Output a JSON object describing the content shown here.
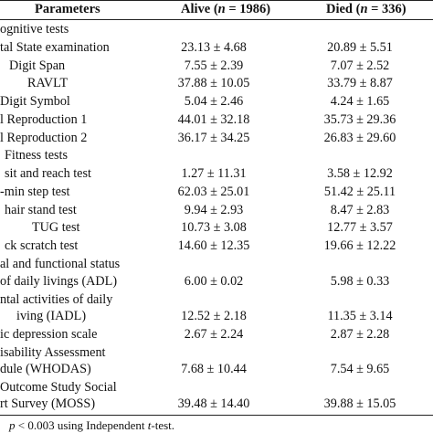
{
  "header": {
    "parameters": "Parameters",
    "alive_prefix": "Alive (",
    "alive_n": "n",
    "alive_suffix": " = 1986)",
    "died_prefix": "Died (",
    "died_n": "n",
    "died_suffix": " = 336)"
  },
  "rows": [
    {
      "label": "ognitive tests",
      "alive": "",
      "died": ""
    },
    {
      "label": "tal State examination",
      "alive": "23.13 ± 4.68",
      "died": "20.89 ± 5.51"
    },
    {
      "label": "Digit Span",
      "alive": "7.55 ± 2.39",
      "died": "7.07 ± 2.52"
    },
    {
      "label": "RAVLT",
      "alive": "37.88 ± 10.05",
      "died": "33.79 ± 8.87"
    },
    {
      "label": "Digit Symbol",
      "alive": "5.04 ± 2.46",
      "died": "4.24 ± 1.65"
    },
    {
      "label": "l Reproduction 1",
      "alive": "44.01 ± 32.18",
      "died": "35.73 ± 29.36"
    },
    {
      "label": "l Reproduction 2",
      "alive": "36.17 ± 34.25",
      "died": "26.83 ± 29.60"
    },
    {
      "label": "Fitness tests",
      "alive": "",
      "died": ""
    },
    {
      "label": "sit and reach test",
      "alive": "1.27 ± 11.31",
      "died": "3.58 ± 12.92"
    },
    {
      "label": "-min step test",
      "alive": "62.03 ± 25.01",
      "died": "51.42 ± 25.11"
    },
    {
      "label": "hair stand test",
      "alive": "9.94 ± 2.93",
      "died": "8.47 ± 2.83"
    },
    {
      "label": "TUG test",
      "alive": "10.73 ± 3.08",
      "died": "12.77 ± 3.57"
    },
    {
      "label": "ck scratch test",
      "alive": "14.60 ± 12.35",
      "died": "19.66 ± 12.22"
    },
    {
      "label": "al and functional status",
      "alive": "",
      "died": ""
    },
    {
      "label": "of daily livings (ADL)",
      "alive": "6.00 ± 0.02",
      "died": "5.98 ± 0.33"
    },
    {
      "label": "ntal activities of daily",
      "alive": "",
      "died": ""
    },
    {
      "label": "iving (IADL)",
      "alive": "12.52 ± 2.18",
      "died": "11.35 ± 3.14"
    },
    {
      "label": "ic depression scale",
      "alive": "2.67 ± 2.24",
      "died": "2.87 ± 2.28"
    },
    {
      "label": "isability Assessment",
      "alive": "",
      "died": ""
    },
    {
      "label": "dule (WHODAS)",
      "alive": "7.68 ± 10.44",
      "died": "7.54 ± 9.65"
    },
    {
      "label": "Outcome Study Social",
      "alive": "",
      "died": ""
    },
    {
      "label": "rt Survey (MOSS)",
      "alive": "39.48 ± 14.40",
      "died": "39.88 ± 15.05"
    }
  ],
  "footnote": {
    "prefix": "p",
    "middle": " < 0.003 using Independent ",
    "t": "t",
    "suffix": "-test."
  }
}
